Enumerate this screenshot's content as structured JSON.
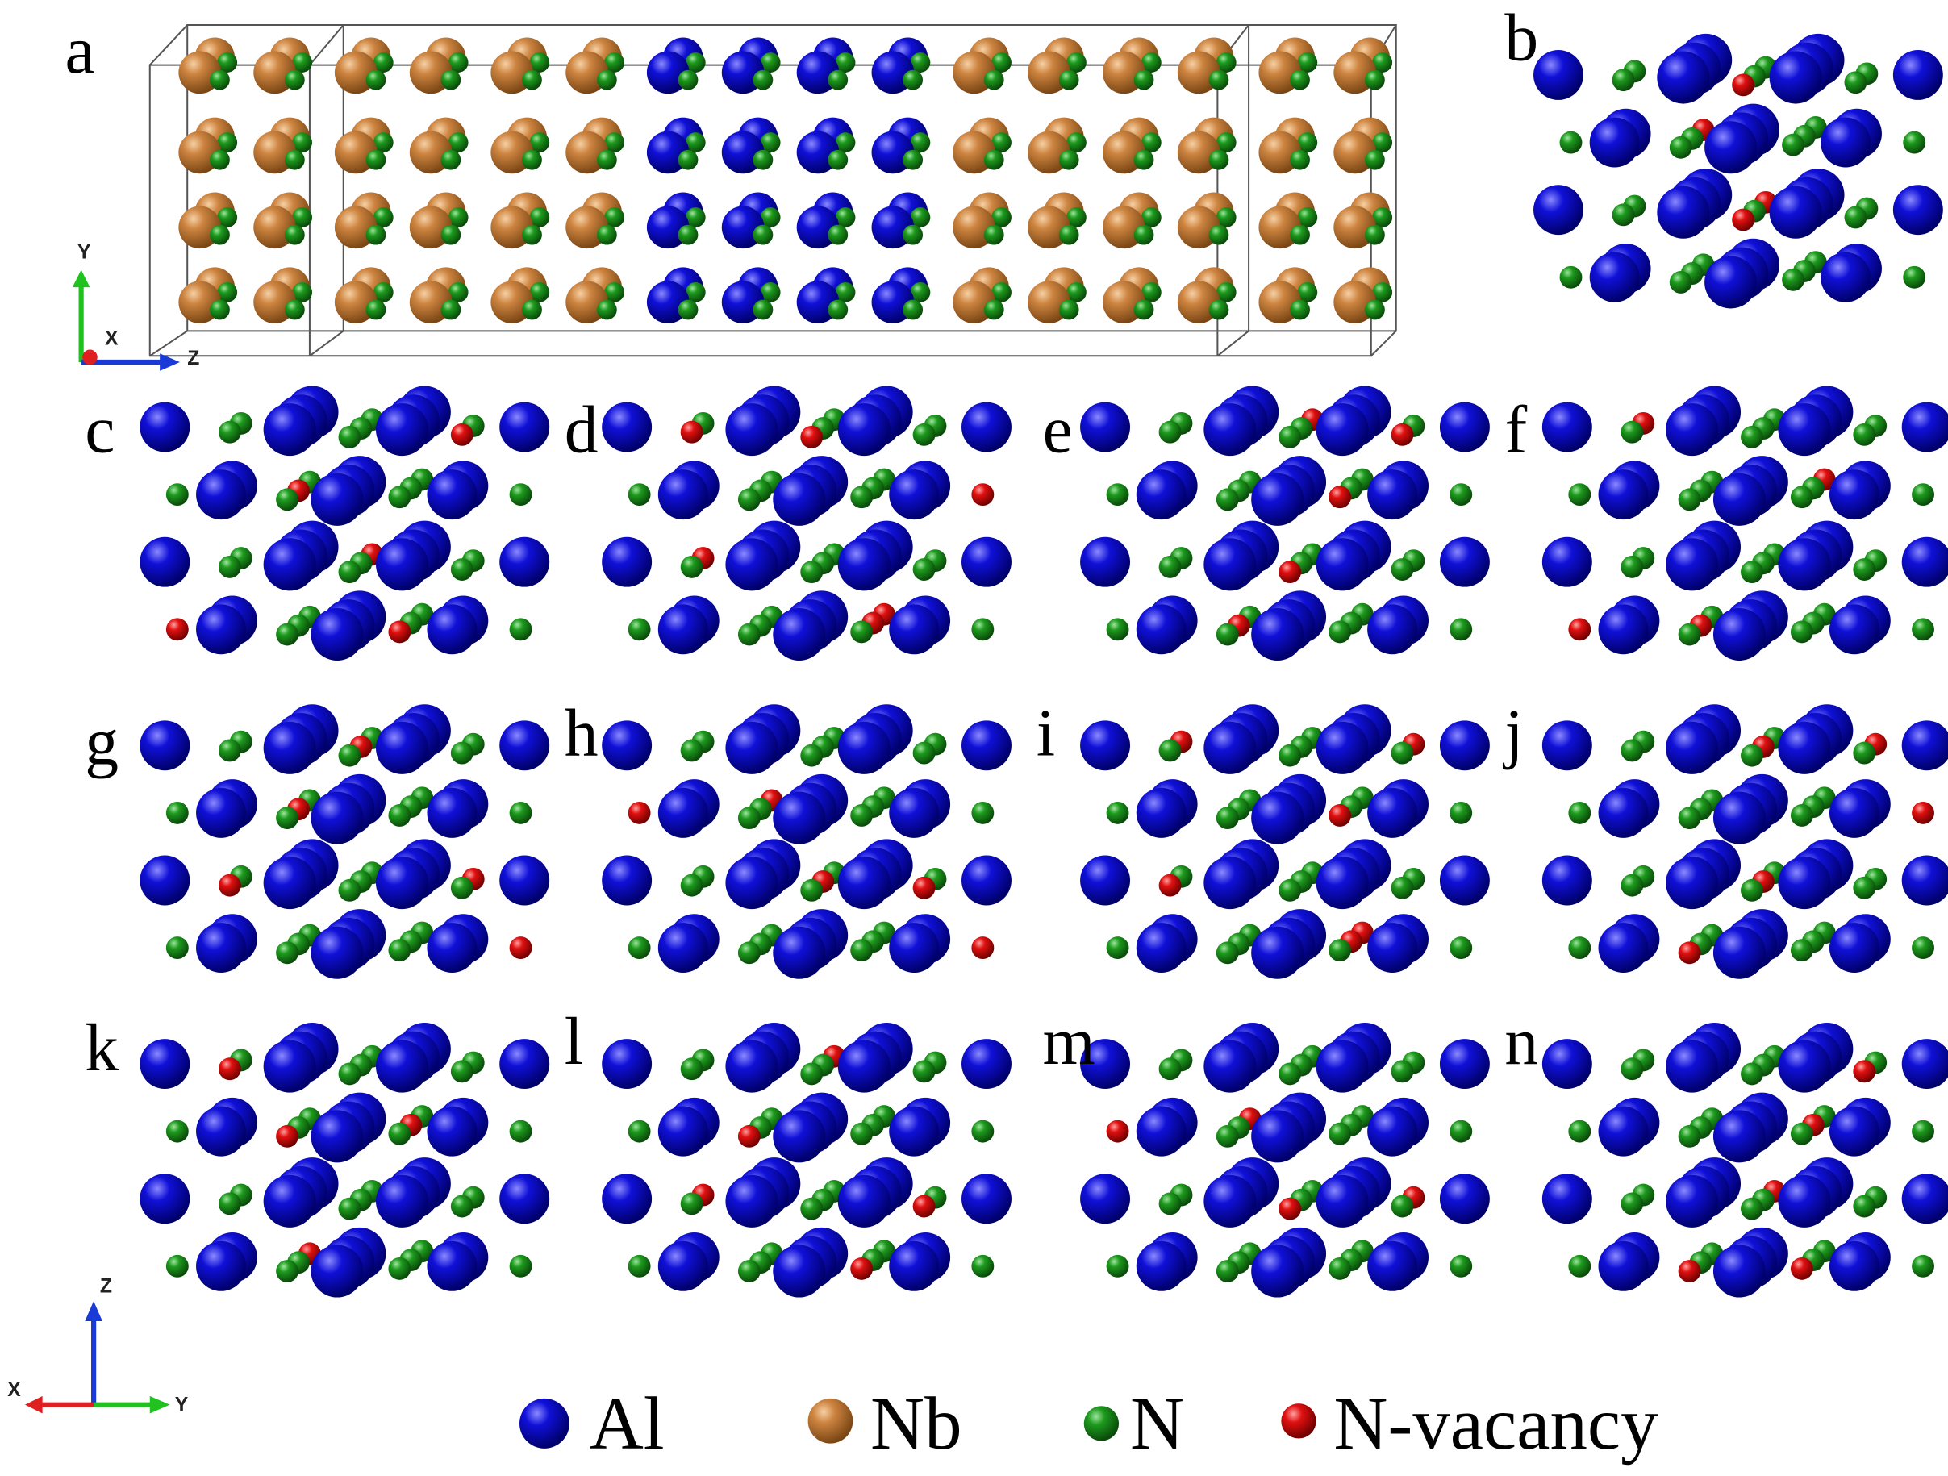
{
  "panels": [
    "a",
    "b",
    "c",
    "d",
    "e",
    "f",
    "g",
    "h",
    "i",
    "j",
    "k",
    "l",
    "m",
    "n"
  ],
  "axes_top": {
    "y": "Y",
    "x": "X",
    "z": "Z"
  },
  "axes_bottom": {
    "z": "Z",
    "x": "X",
    "y": "Y"
  },
  "legend": [
    "Al",
    "Nb",
    "N",
    "N-vacancy"
  ]
}
